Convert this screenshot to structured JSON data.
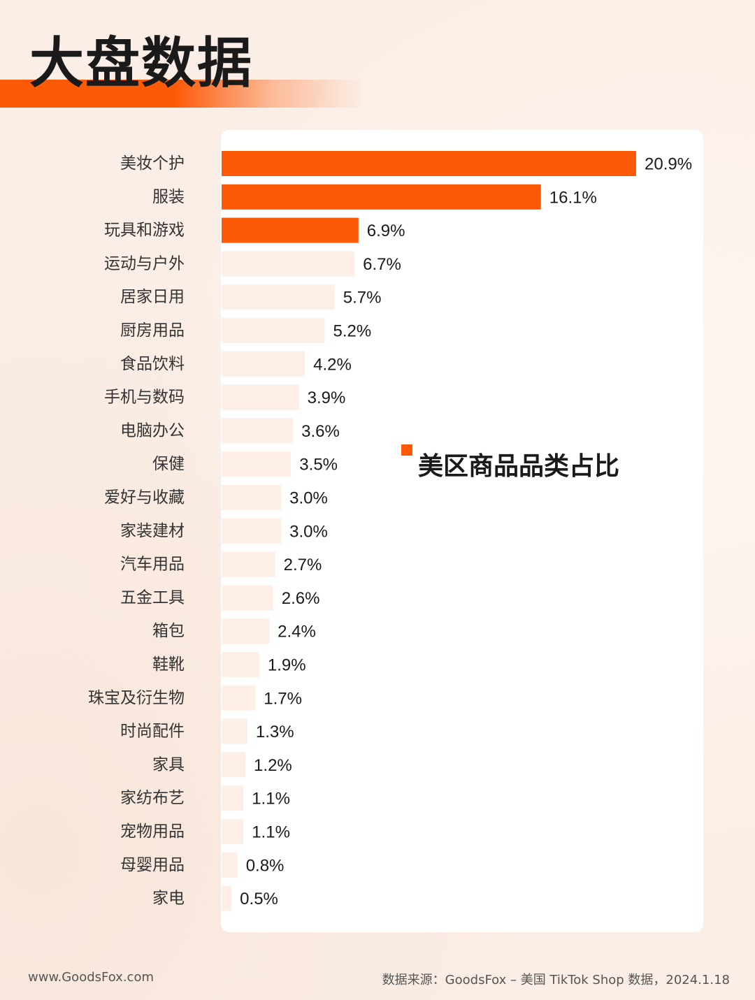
{
  "page": {
    "title": "大盘数据",
    "legend_label": "美区商品品类占比",
    "footer_site": "www.GoodsFox.com",
    "footer_source": "数据来源：GoodsFox – 美国 TikTok Shop 数据，2024.1.18"
  },
  "colors": {
    "accent": "#fd5a08",
    "light_bar": "#fdeee6",
    "text": "#1a1a1a"
  },
  "chart_data": {
    "type": "bar",
    "orientation": "horizontal",
    "categories": [
      "美妆个护",
      "服装",
      "玩具和游戏",
      "运动与户外",
      "居家日用",
      "厨房用品",
      "食品饮料",
      "手机与数码",
      "电脑办公",
      "保健",
      "爱好与收藏",
      "家装建材",
      "汽车用品",
      "五金工具",
      "箱包",
      "鞋靴",
      "珠宝及衍生物",
      "时尚配件",
      "家具",
      "家纺布艺",
      "宠物用品",
      "母婴用品",
      "家电"
    ],
    "values": [
      20.9,
      16.1,
      6.9,
      6.7,
      5.7,
      5.2,
      4.2,
      3.9,
      3.6,
      3.5,
      3.0,
      3.0,
      2.7,
      2.6,
      2.4,
      1.9,
      1.7,
      1.3,
      1.2,
      1.1,
      1.1,
      0.8,
      0.5
    ],
    "value_labels": [
      "20.9%",
      "16.1%",
      "6.9%",
      "6.7%",
      "5.7%",
      "5.2%",
      "4.2%",
      "3.9%",
      "3.6%",
      "3.5%",
      "3.0%",
      "3.0%",
      "2.7%",
      "2.6%",
      "2.4%",
      "1.9%",
      "1.7%",
      "1.3%",
      "1.2%",
      "1.1%",
      "1.1%",
      "0.8%",
      "0.5%"
    ],
    "highlighted_top": 3,
    "unit": "%",
    "series": [
      {
        "name": "美区商品品类占比"
      }
    ],
    "legend_position": "middle-right",
    "grid": false
  }
}
